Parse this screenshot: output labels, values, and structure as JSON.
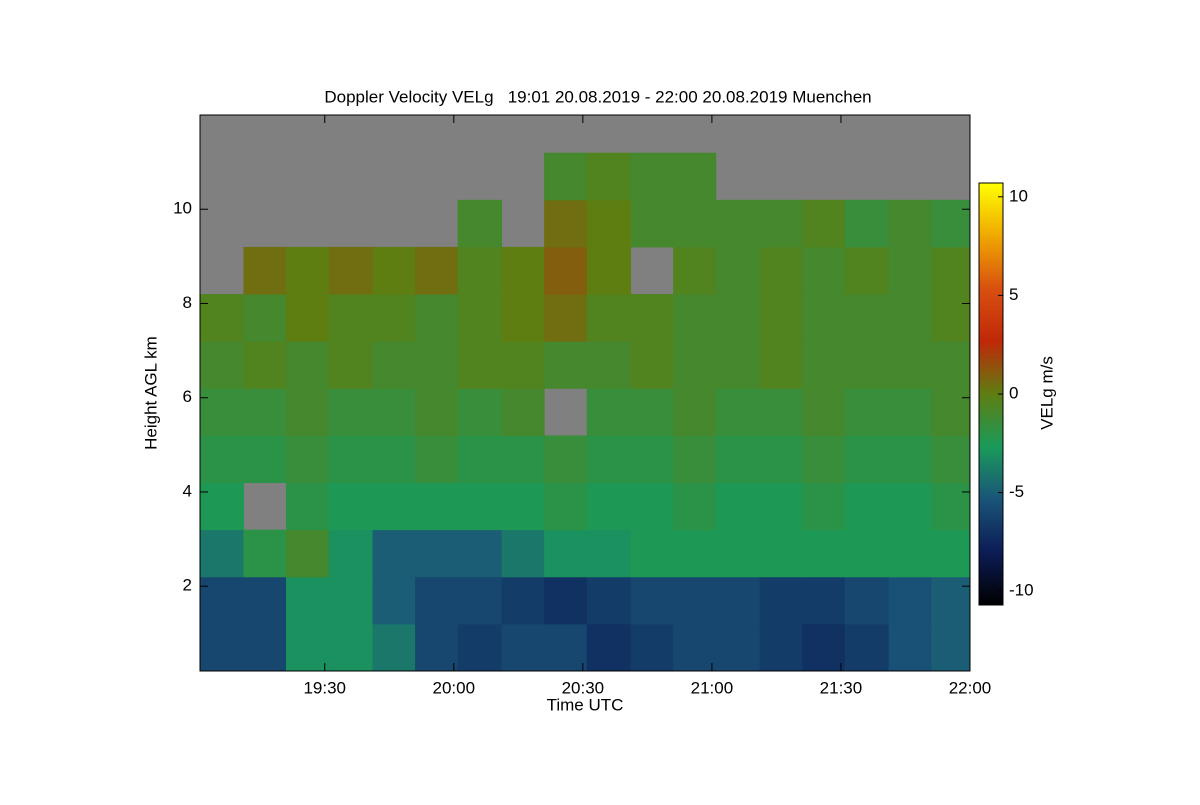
{
  "chart_data": {
    "type": "heatmap",
    "title": "Doppler Velocity VELg   19:01 20.08.2019 - 22:00 20.08.2019 Muenchen",
    "x_label": "Time UTC",
    "y_label": "Height AGL km",
    "colorbar_label": "VELg m/s",
    "x": [
      19.1,
      19.27,
      19.43,
      19.6,
      19.77,
      19.93,
      20.1,
      20.27,
      20.43,
      20.6,
      20.77,
      20.93,
      21.1,
      21.27,
      21.43,
      21.6,
      21.77,
      21.93
    ],
    "y": [
      0.7,
      1.7,
      2.7,
      3.7,
      4.7,
      5.7,
      6.7,
      7.7,
      8.7,
      9.7,
      10.7,
      11.7
    ],
    "z": [
      [
        -6,
        -6,
        -3,
        -3,
        -4,
        -6,
        -6.5,
        -6,
        -6,
        -7,
        -6.5,
        -6,
        -6,
        -6.5,
        -7,
        -6.5,
        -5.5,
        -5
      ],
      [
        -6,
        -6,
        -3,
        -3,
        -5,
        -6,
        -6,
        -6.5,
        -7,
        -6.5,
        -6,
        -6,
        -6,
        -6.5,
        -6.5,
        -6,
        -5.5,
        -5
      ],
      [
        -4,
        -2,
        -1,
        -3,
        -5,
        -5,
        -5,
        -4,
        -3,
        -3,
        -2.5,
        -2.5,
        -2.5,
        -2.5,
        -2.5,
        -2.5,
        -2.5,
        -2.5
      ],
      [
        -2.5,
        null,
        -2,
        -2.5,
        -2.5,
        -2.5,
        -2.5,
        -2.5,
        -2,
        -2.5,
        -2.5,
        -2,
        -2.5,
        -2.5,
        -2,
        -2.5,
        -2.5,
        -2
      ],
      [
        -2,
        -2,
        -1.5,
        -2,
        -2,
        -1.5,
        -2,
        -2,
        -1.5,
        -2,
        -2,
        -1.5,
        -2,
        -2,
        -1.5,
        -2,
        -2,
        -1.5
      ],
      [
        -1.5,
        -1.5,
        -1,
        -1.5,
        -1.5,
        -1,
        -1.5,
        -1,
        null,
        -1.5,
        -1.5,
        -1,
        -1.5,
        -1.5,
        -1,
        -1.5,
        -1.5,
        -1
      ],
      [
        -1,
        -0.5,
        -1,
        -0.5,
        -1,
        -1,
        -0.5,
        -0.5,
        -1,
        -1,
        -0.5,
        -1,
        -1,
        -0.5,
        -1,
        -1,
        -1,
        -1
      ],
      [
        -0.5,
        -1,
        0,
        -0.5,
        -0.5,
        -1,
        -0.5,
        0,
        0.5,
        -0.5,
        -0.5,
        -1,
        -1,
        -0.5,
        -1,
        -1,
        -1,
        -0.5
      ],
      [
        null,
        0.5,
        0,
        0.5,
        0,
        0.5,
        -0.5,
        0,
        1,
        0,
        null,
        -0.5,
        -1,
        -0.5,
        -1,
        -0.5,
        -1,
        -0.5
      ],
      [
        null,
        null,
        null,
        null,
        null,
        null,
        -1,
        null,
        0.5,
        0,
        -1,
        -1,
        -1,
        -1,
        -0.5,
        -1.5,
        -1,
        -1.5
      ],
      [
        null,
        null,
        null,
        null,
        null,
        null,
        null,
        null,
        -1,
        -0.5,
        -1,
        -1,
        null,
        null,
        null,
        null,
        null,
        null
      ],
      [
        null,
        null,
        null,
        null,
        null,
        null,
        null,
        null,
        null,
        null,
        null,
        null,
        null,
        null,
        null,
        null,
        null,
        null
      ]
    ],
    "xlim": [
      19.0167,
      22
    ],
    "xticks": [
      {
        "value": 19.5,
        "label": "19:30"
      },
      {
        "value": 20,
        "label": "20:00"
      },
      {
        "value": 20.5,
        "label": "20:30"
      },
      {
        "value": 21,
        "label": "21:00"
      },
      {
        "value": 21.5,
        "label": "21:30"
      },
      {
        "value": 22,
        "label": "22:00"
      }
    ],
    "ylim": [
      0.2,
      12
    ],
    "yticks": [
      2,
      4,
      6,
      8,
      10
    ],
    "zlim": [
      -10.7,
      10.7
    ],
    "zticks": [
      -10,
      -5,
      0,
      5,
      10
    ],
    "colormap": [
      "#000000",
      "#0c1c55",
      "#1a5478",
      "#1a9a5a",
      "#5e7e12",
      "#c02808",
      "#d85010",
      "#f0a800",
      "#ffff00"
    ],
    "missing_color": "#808080"
  }
}
